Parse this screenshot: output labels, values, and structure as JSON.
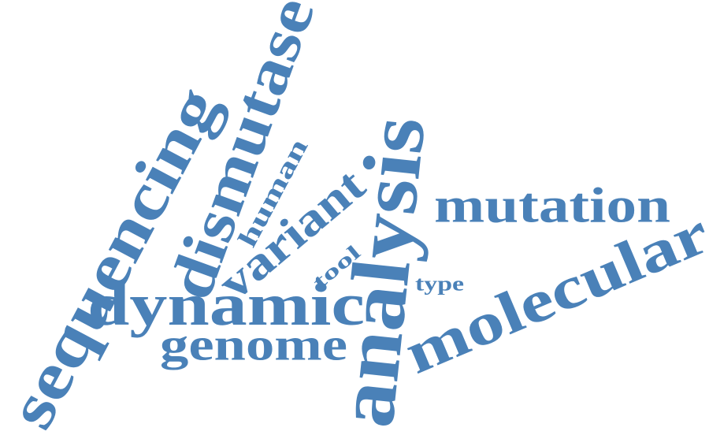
{
  "word_cloud": {
    "color": "#4a81b8",
    "words": [
      {
        "id": "sequencing",
        "text": "sequencing"
      },
      {
        "id": "dismutase",
        "text": "dismutase"
      },
      {
        "id": "human",
        "text": "human"
      },
      {
        "id": "variant",
        "text": "variant"
      },
      {
        "id": "analysis",
        "text": "analysis"
      },
      {
        "id": "mutation",
        "text": "mutation"
      },
      {
        "id": "molecular",
        "text": "molecular"
      },
      {
        "id": "dynamic",
        "text": "dynamic"
      },
      {
        "id": "genome",
        "text": "genome"
      },
      {
        "id": "tool",
        "text": "tool"
      },
      {
        "id": "type",
        "text": "type"
      }
    ]
  }
}
